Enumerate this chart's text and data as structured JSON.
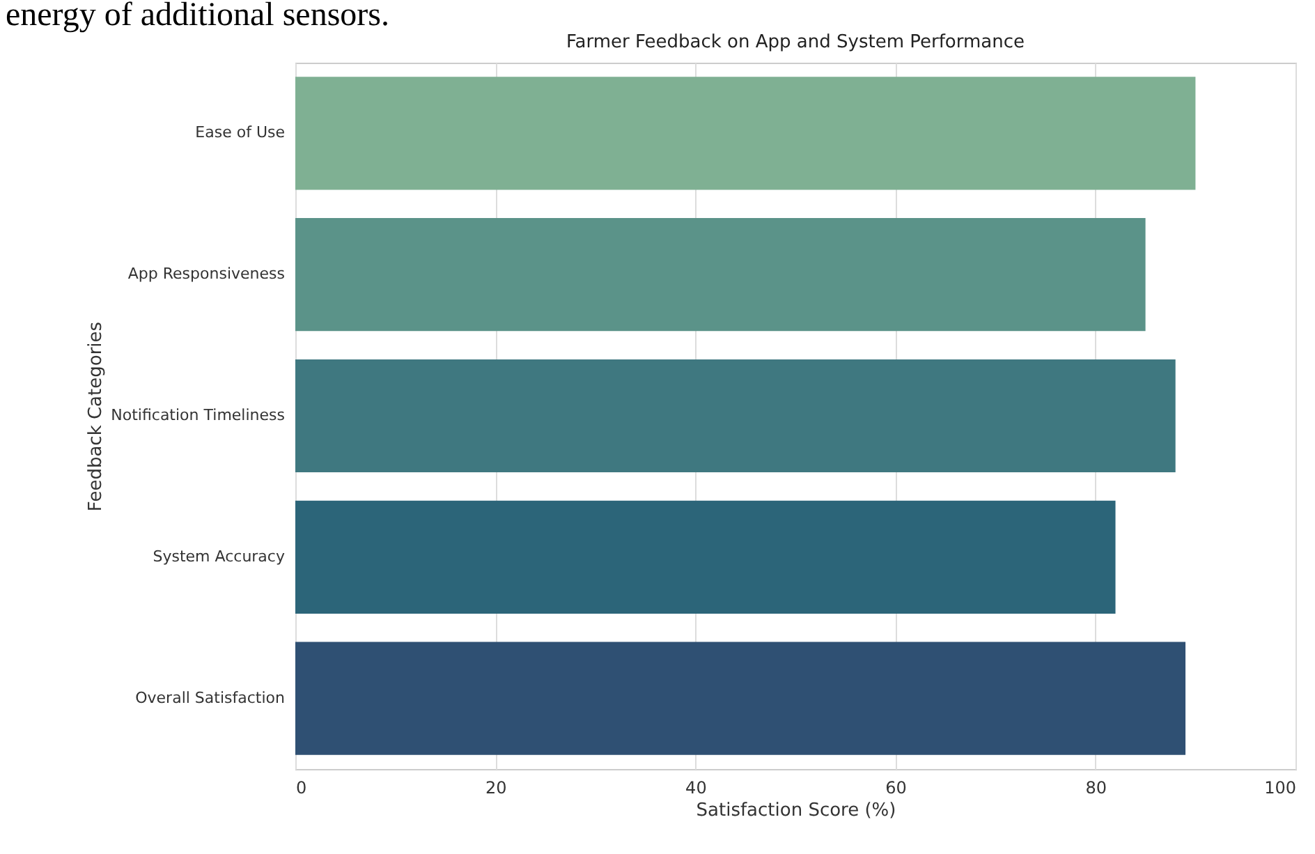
{
  "chart_data": {
    "type": "bar",
    "orientation": "horizontal",
    "title": "Farmer Feedback on App and System Performance",
    "xlabel": "Satisfaction Score (%)",
    "ylabel": "Feedback Categories",
    "categories": [
      "Ease of Use",
      "App Responsiveness",
      "Notification Timeliness",
      "System Accuracy",
      "Overall Satisfaction"
    ],
    "values": [
      90,
      85,
      88,
      82,
      89
    ],
    "colors": [
      "#7fb093",
      "#5b9389",
      "#3f7880",
      "#2c6579",
      "#2f5073"
    ],
    "xlim": [
      0,
      100
    ],
    "xticks": [
      0,
      20,
      40,
      60,
      80,
      100
    ],
    "grid": "x",
    "annotations": [
      "energy of additional sensors."
    ]
  }
}
